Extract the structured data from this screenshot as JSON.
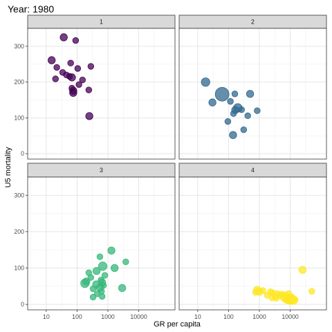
{
  "chart_data": {
    "type": "scatter",
    "title": "Year: 1980",
    "xlabel": "GR per capita",
    "ylabel": "U5 mortality",
    "x_scale": "log10",
    "xlim": [
      2.5,
      150000
    ],
    "ylim": [
      -15,
      350
    ],
    "x_ticks": [
      10,
      100,
      1000,
      10000
    ],
    "x_tick_labels": [
      "10",
      "100",
      "1000",
      "10000"
    ],
    "y_ticks": [
      0,
      100,
      200,
      300
    ],
    "y_tick_labels": [
      "0",
      "100",
      "200",
      "300"
    ],
    "grid": true,
    "layout": "facet 2x2",
    "panels": [
      {
        "label": "1",
        "color": "#440154",
        "points": [
          {
            "x": 37,
            "y": 325,
            "size": 3
          },
          {
            "x": 90,
            "y": 316,
            "size": 2
          },
          {
            "x": 15,
            "y": 261,
            "size": 3
          },
          {
            "x": 62,
            "y": 253,
            "size": 2
          },
          {
            "x": 280,
            "y": 244,
            "size": 2
          },
          {
            "x": 22,
            "y": 241,
            "size": 2
          },
          {
            "x": 105,
            "y": 238,
            "size": 2
          },
          {
            "x": 34,
            "y": 227,
            "size": 2
          },
          {
            "x": 45,
            "y": 220,
            "size": 2
          },
          {
            "x": 57,
            "y": 216,
            "size": 2
          },
          {
            "x": 68,
            "y": 213,
            "size": 3
          },
          {
            "x": 20,
            "y": 209,
            "size": 2
          },
          {
            "x": 150,
            "y": 206,
            "size": 2
          },
          {
            "x": 115,
            "y": 193,
            "size": 2
          },
          {
            "x": 68,
            "y": 183,
            "size": 2
          },
          {
            "x": 240,
            "y": 178,
            "size": 2
          },
          {
            "x": 75,
            "y": 176,
            "size": 3
          },
          {
            "x": 75,
            "y": 170,
            "size": 3
          },
          {
            "x": 250,
            "y": 105,
            "size": 3
          }
        ]
      },
      {
        "label": "2",
        "color": "#31688e",
        "points": [
          {
            "x": 18,
            "y": 200,
            "size": 4
          },
          {
            "x": 62,
            "y": 166,
            "size": 8
          },
          {
            "x": 500,
            "y": 167,
            "size": 3
          },
          {
            "x": 160,
            "y": 167,
            "size": 2
          },
          {
            "x": 30,
            "y": 143,
            "size": 3
          },
          {
            "x": 115,
            "y": 146,
            "size": 2
          },
          {
            "x": 200,
            "y": 128,
            "size": 4
          },
          {
            "x": 165,
            "y": 122,
            "size": 3
          },
          {
            "x": 265,
            "y": 123,
            "size": 2
          },
          {
            "x": 850,
            "y": 120,
            "size": 2
          },
          {
            "x": 145,
            "y": 112,
            "size": 2
          },
          {
            "x": 420,
            "y": 106,
            "size": 2
          },
          {
            "x": 95,
            "y": 90,
            "size": 2
          },
          {
            "x": 310,
            "y": 67,
            "size": 2
          },
          {
            "x": 140,
            "y": 52,
            "size": 3
          }
        ]
      },
      {
        "label": "3",
        "color": "#35b779",
        "points": [
          {
            "x": 1300,
            "y": 148,
            "size": 3
          },
          {
            "x": 550,
            "y": 131,
            "size": 2
          },
          {
            "x": 3800,
            "y": 117,
            "size": 2
          },
          {
            "x": 680,
            "y": 105,
            "size": 4
          },
          {
            "x": 1650,
            "y": 100,
            "size": 3
          },
          {
            "x": 430,
            "y": 92,
            "size": 3
          },
          {
            "x": 240,
            "y": 87,
            "size": 2
          },
          {
            "x": 800,
            "y": 80,
            "size": 2
          },
          {
            "x": 280,
            "y": 74,
            "size": 2
          },
          {
            "x": 600,
            "y": 67,
            "size": 2
          },
          {
            "x": 200,
            "y": 63,
            "size": 3
          },
          {
            "x": 180,
            "y": 58,
            "size": 4
          },
          {
            "x": 650,
            "y": 60,
            "size": 3
          },
          {
            "x": 420,
            "y": 55,
            "size": 3
          },
          {
            "x": 720,
            "y": 52,
            "size": 2
          },
          {
            "x": 2900,
            "y": 45,
            "size": 3
          },
          {
            "x": 550,
            "y": 46,
            "size": 3
          },
          {
            "x": 330,
            "y": 43,
            "size": 2
          },
          {
            "x": 620,
            "y": 36,
            "size": 2
          },
          {
            "x": 450,
            "y": 29,
            "size": 2
          },
          {
            "x": 330,
            "y": 20,
            "size": 2
          },
          {
            "x": 650,
            "y": 22,
            "size": 2
          }
        ]
      },
      {
        "label": "4",
        "color": "#fde725",
        "points": [
          {
            "x": 25000,
            "y": 95,
            "size": 3
          },
          {
            "x": 850,
            "y": 40,
            "size": 3
          },
          {
            "x": 1000,
            "y": 35,
            "size": 3
          },
          {
            "x": 1300,
            "y": 38,
            "size": 2
          },
          {
            "x": 750,
            "y": 33,
            "size": 2
          },
          {
            "x": 50000,
            "y": 36,
            "size": 2
          },
          {
            "x": 2300,
            "y": 35,
            "size": 2
          },
          {
            "x": 2700,
            "y": 32,
            "size": 2
          },
          {
            "x": 3800,
            "y": 30,
            "size": 2
          },
          {
            "x": 5200,
            "y": 28,
            "size": 2
          },
          {
            "x": 6500,
            "y": 27,
            "size": 2
          },
          {
            "x": 9000,
            "y": 30,
            "size": 2
          },
          {
            "x": 1800,
            "y": 25,
            "size": 2
          },
          {
            "x": 3300,
            "y": 23,
            "size": 2
          },
          {
            "x": 4500,
            "y": 24,
            "size": 2
          },
          {
            "x": 7500,
            "y": 22,
            "size": 2
          },
          {
            "x": 11000,
            "y": 21,
            "size": 2
          },
          {
            "x": 2600,
            "y": 18,
            "size": 2
          },
          {
            "x": 3500,
            "y": 17,
            "size": 2
          },
          {
            "x": 6000,
            "y": 18,
            "size": 2
          },
          {
            "x": 8200,
            "y": 18,
            "size": 3
          },
          {
            "x": 12500,
            "y": 17,
            "size": 2
          },
          {
            "x": 14500,
            "y": 13,
            "size": 2
          },
          {
            "x": 9500,
            "y": 14,
            "size": 3
          },
          {
            "x": 11500,
            "y": 14,
            "size": 2
          },
          {
            "x": 7000,
            "y": 12,
            "size": 2
          },
          {
            "x": 10500,
            "y": 11,
            "size": 3
          },
          {
            "x": 13000,
            "y": 10,
            "size": 3
          },
          {
            "x": 8600,
            "y": 9,
            "size": 2
          },
          {
            "x": 10000,
            "y": 8,
            "size": 2
          }
        ]
      }
    ]
  }
}
